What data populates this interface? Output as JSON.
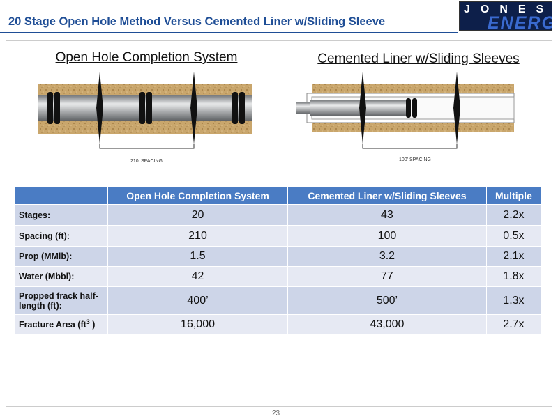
{
  "header": {
    "title": "20 Stage Open Hole Method Versus Cemented Liner w/Sliding Sleeve",
    "logo_top": "JONES",
    "logo_bottom": "ENERGY"
  },
  "diagrams": [
    {
      "title": "Open Hole Completion System",
      "spacing": "210' SPACING"
    },
    {
      "title": "Cemented Liner w/Sliding Sleeves",
      "spacing": "100' SPACING"
    }
  ],
  "table": {
    "columns": [
      "Open Hole Completion System",
      "Cemented Liner w/Sliding Sleeves",
      "Multiple"
    ],
    "rows": [
      {
        "label": "Stages:",
        "cells": [
          "20",
          "43",
          "2.2x"
        ]
      },
      {
        "label": "Spacing (ft):",
        "cells": [
          "210",
          "100",
          "0.5x"
        ]
      },
      {
        "label": "Prop (MMlb):",
        "cells": [
          "1.5",
          "3.2",
          "2.1x"
        ]
      },
      {
        "label": "Water (Mbbl):",
        "cells": [
          "42",
          "77",
          "1.8x"
        ]
      },
      {
        "label": "Propped frack half-length (ft):",
        "cells": [
          "400’",
          "500’",
          "1.3x"
        ]
      },
      {
        "label": "Fracture Area (ft",
        "label_sup": "3",
        "label_end": " )",
        "cells": [
          "16,000",
          "43,000",
          "2.7x"
        ]
      }
    ]
  },
  "footer": {
    "page": "23"
  }
}
